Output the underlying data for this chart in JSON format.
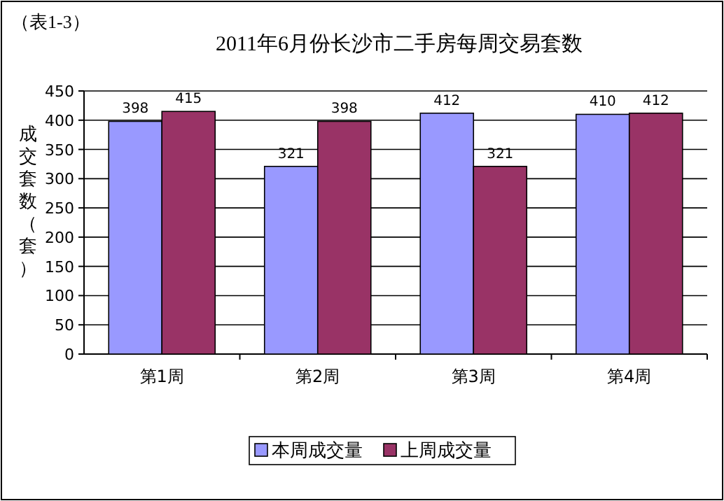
{
  "chart_data": {
    "type": "bar",
    "title": "2011年6月份长沙市二手房每周交易套数",
    "ylabel": "成交套数（套）",
    "annotations": [
      "（表1-3）"
    ],
    "categories": [
      "第1周",
      "第2周",
      "第3周",
      "第4周"
    ],
    "series": [
      {
        "name": "本周成交量",
        "color": "#9999ff",
        "values": [
          398,
          321,
          412,
          410
        ]
      },
      {
        "name": "上周成交量",
        "color": "#993366",
        "values": [
          415,
          398,
          321,
          412
        ]
      }
    ],
    "ylim": [
      0,
      450
    ],
    "yticks": [
      0,
      50,
      100,
      150,
      200,
      250,
      300,
      350,
      400,
      450
    ],
    "grid": "y",
    "legend": "bottom",
    "data_labels": true
  }
}
